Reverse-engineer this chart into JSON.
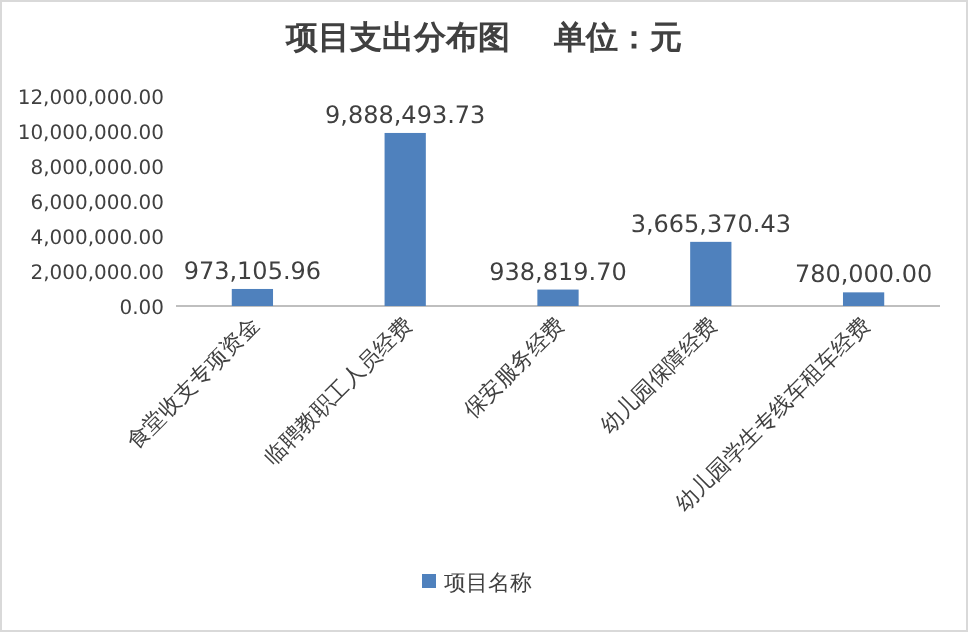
{
  "chart_data": {
    "type": "bar",
    "title": "项目支出分布图    单位：元",
    "categories": [
      "食堂收支专项资金",
      "临聘教职工人员经费",
      "保安服务经费",
      "幼儿园保障经费",
      "幼儿园学生专线车租车经费"
    ],
    "series": [
      {
        "name": "项目名称",
        "color": "#4f81bd",
        "values": [
          973105.96,
          9888493.73,
          938819.7,
          3665370.43,
          780000.0
        ]
      }
    ],
    "value_labels": [
      "973,105.96",
      "9,888,493.73",
      "938,819.70",
      "3,665,370.43",
      "780,000.00"
    ],
    "ylim": [
      0,
      12000000
    ],
    "yticks": [
      {
        "value": 0,
        "label": "0.00"
      },
      {
        "value": 2000000,
        "label": "2,000,000.00"
      },
      {
        "value": 4000000,
        "label": "4,000,000.00"
      },
      {
        "value": 6000000,
        "label": "6,000,000.00"
      },
      {
        "value": 8000000,
        "label": "8,000,000.00"
      },
      {
        "value": 10000000,
        "label": "10,000,000.00"
      },
      {
        "value": 12000000,
        "label": "12,000,000.00"
      }
    ],
    "grid": false,
    "legend": "bottom"
  }
}
